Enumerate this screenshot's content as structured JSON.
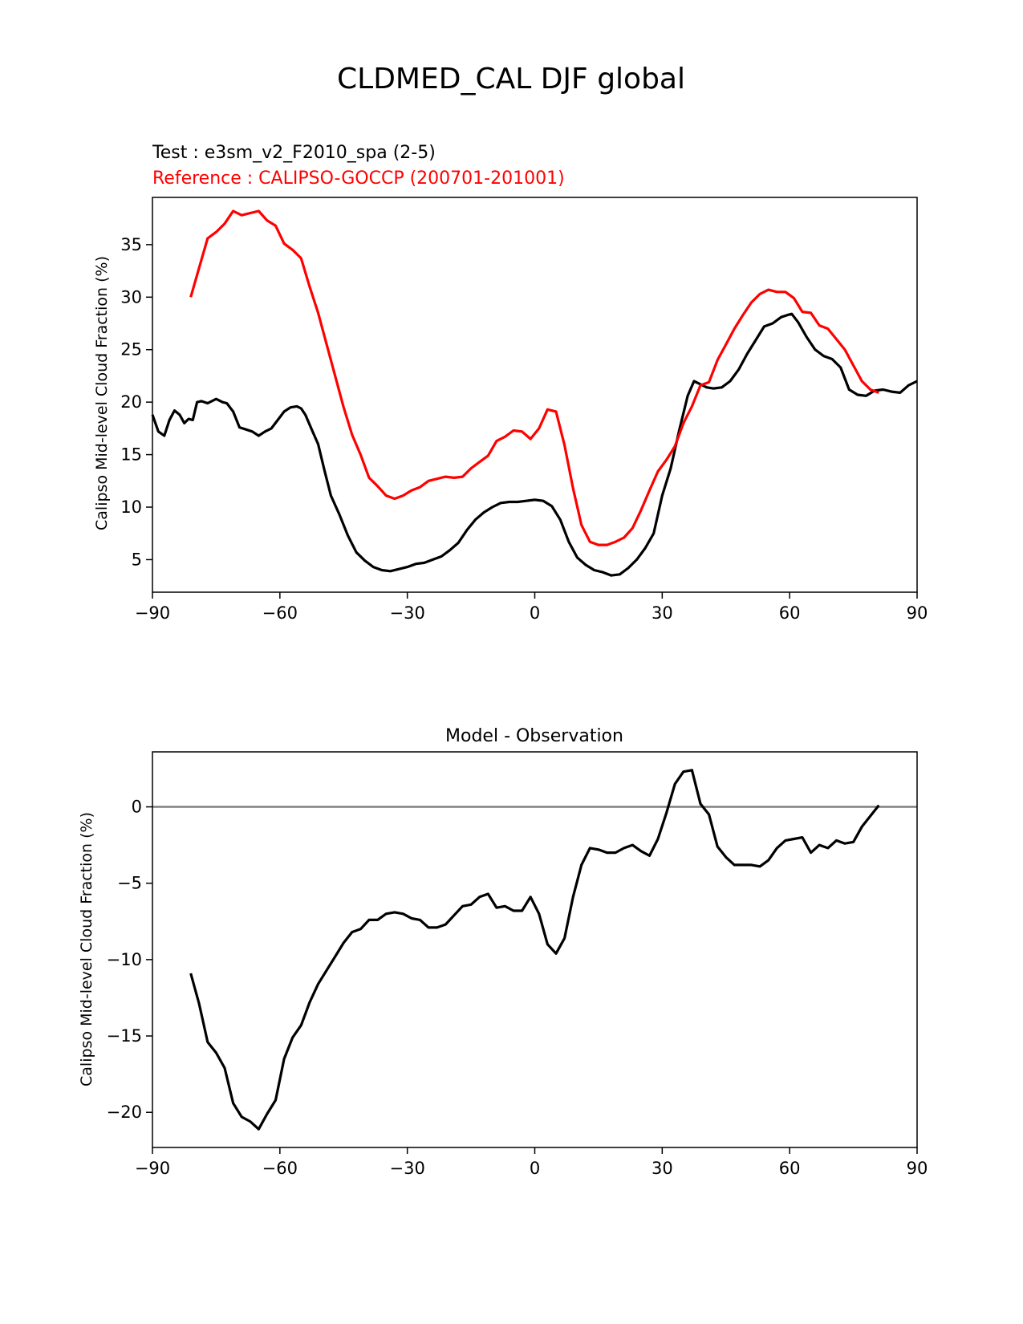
{
  "figure_title": "CLDMED_CAL DJF global",
  "colors": {
    "test": "#000000",
    "reference": "#ff0000",
    "zero_line": "#808080",
    "axes": "#000000"
  },
  "chart_data": [
    {
      "type": "line",
      "title_test": "Test : e3sm_v2_F2010_spa (2-5)",
      "title_reference": "Reference : CALIPSO-GOCCP (200701-201001)",
      "xlabel": "",
      "ylabel": "Calipso Mid-level Cloud Fraction (%)",
      "xlim": [
        -90,
        90
      ],
      "ylim": [
        1.9,
        39.5
      ],
      "xticks": [
        -90,
        -60,
        -30,
        0,
        30,
        60,
        90
      ],
      "xtick_labels": [
        "−90",
        "−60",
        "−30",
        "0",
        "30",
        "60",
        "90"
      ],
      "yticks": [
        5,
        10,
        15,
        20,
        25,
        30,
        35
      ],
      "ytick_labels": [
        "5",
        "10",
        "15",
        "20",
        "25",
        "30",
        "35"
      ],
      "series": [
        {
          "name": "Test : e3sm_v2_F2010_spa (2-5)",
          "color": "#000000",
          "x": [
            -90,
            -88.6,
            -87.2,
            -86,
            -84.8,
            -83.6,
            -82.5,
            -81.5,
            -80.5,
            -79.5,
            -78.5,
            -77,
            -75,
            -73.5,
            -72.5,
            -71,
            -69.5,
            -68,
            -66.5,
            -65,
            -63.5,
            -62,
            -60.5,
            -59,
            -57.5,
            -56,
            -55,
            -54,
            -52.5,
            -51,
            -49.5,
            -48,
            -46,
            -44,
            -42,
            -40,
            -38,
            -36,
            -34,
            -32,
            -30,
            -28,
            -26,
            -24,
            -22,
            -20,
            -18,
            -16,
            -14,
            -12,
            -10,
            -8,
            -6,
            -4,
            -2,
            0,
            2,
            4,
            6,
            8,
            10,
            12,
            14,
            16,
            18,
            20,
            22,
            24,
            26,
            28,
            30,
            32,
            34,
            36,
            37.5,
            39,
            40.5,
            42,
            44,
            46,
            48,
            50,
            52,
            54,
            56,
            58,
            59.5,
            60.5,
            62,
            64,
            66,
            68,
            70,
            72,
            74,
            76,
            78,
            80,
            82,
            84,
            86,
            88,
            90
          ],
          "y": [
            18.8,
            17.2,
            16.8,
            18.3,
            19.2,
            18.8,
            18.0,
            18.4,
            18.3,
            20.0,
            20.1,
            19.9,
            20.3,
            20.0,
            19.9,
            19.1,
            17.6,
            17.4,
            17.2,
            16.8,
            17.2,
            17.5,
            18.3,
            19.1,
            19.5,
            19.6,
            19.4,
            18.8,
            17.4,
            16.0,
            13.5,
            11.1,
            9.3,
            7.3,
            5.7,
            4.9,
            4.3,
            4.0,
            3.9,
            4.1,
            4.3,
            4.6,
            4.7,
            5.0,
            5.3,
            5.9,
            6.6,
            7.8,
            8.8,
            9.5,
            10.0,
            10.4,
            10.5,
            10.5,
            10.6,
            10.7,
            10.6,
            10.1,
            8.8,
            6.7,
            5.2,
            4.5,
            4.0,
            3.8,
            3.5,
            3.6,
            4.2,
            5.0,
            6.1,
            7.5,
            11.1,
            13.7,
            17.3,
            20.6,
            22.0,
            21.7,
            21.4,
            21.3,
            21.4,
            22.0,
            23.1,
            24.6,
            25.9,
            27.2,
            27.5,
            28.1,
            28.3,
            28.4,
            27.6,
            26.2,
            25.0,
            24.4,
            24.1,
            23.3,
            21.2,
            20.7,
            20.6,
            21.1,
            21.2,
            21.0,
            20.9,
            21.6,
            22.0
          ]
        },
        {
          "name": "Reference : CALIPSO-GOCCP (200701-201001)",
          "color": "#ff0000",
          "x": [
            -81,
            -79,
            -77,
            -75,
            -73,
            -71,
            -69,
            -67,
            -65,
            -63,
            -61,
            -59,
            -57,
            -55,
            -53,
            -51,
            -49,
            -47,
            -45,
            -43,
            -41,
            -39,
            -37,
            -35,
            -33,
            -31,
            -29,
            -27,
            -25,
            -23,
            -21,
            -19,
            -17,
            -15,
            -13,
            -11,
            -9,
            -7,
            -5,
            -3,
            -1,
            1,
            3,
            5,
            7,
            9,
            11,
            13,
            15,
            17,
            19,
            21,
            23,
            25,
            27,
            29,
            31,
            33,
            35,
            37,
            39,
            41,
            43,
            45,
            47,
            49,
            51,
            53,
            55,
            57,
            59,
            61,
            63,
            65,
            67,
            69,
            71,
            73,
            75,
            77,
            79,
            81
          ],
          "y": [
            30.0,
            32.8,
            35.6,
            36.2,
            37.0,
            38.2,
            37.8,
            38.0,
            38.2,
            37.3,
            36.8,
            35.1,
            34.5,
            33.7,
            31.0,
            28.5,
            25.5,
            22.5,
            19.5,
            16.9,
            15.0,
            12.8,
            12.0,
            11.1,
            10.8,
            11.1,
            11.6,
            11.9,
            12.5,
            12.7,
            12.9,
            12.8,
            12.9,
            13.7,
            14.3,
            14.9,
            16.3,
            16.7,
            17.3,
            17.2,
            16.5,
            17.5,
            19.3,
            19.1,
            15.9,
            11.8,
            8.3,
            6.7,
            6.4,
            6.4,
            6.7,
            7.1,
            8.0,
            9.7,
            11.6,
            13.4,
            14.5,
            15.8,
            18.0,
            19.6,
            21.6,
            21.9,
            24.0,
            25.5,
            27.0,
            28.3,
            29.5,
            30.3,
            30.7,
            30.5,
            30.5,
            29.9,
            28.6,
            28.5,
            27.3,
            27.0,
            26.0,
            25.0,
            23.5,
            22.0,
            21.2,
            20.9
          ]
        }
      ]
    },
    {
      "type": "line",
      "title": "Model - Observation",
      "xlabel": "",
      "ylabel": "Calipso Mid-level Cloud Fraction (%)",
      "xlim": [
        -90,
        90
      ],
      "ylim": [
        -22.3,
        3.6
      ],
      "xticks": [
        -90,
        -60,
        -30,
        0,
        30,
        60,
        90
      ],
      "xtick_labels": [
        "−90",
        "−60",
        "−30",
        "0",
        "30",
        "60",
        "90"
      ],
      "yticks": [
        -20,
        -15,
        -10,
        -5,
        0
      ],
      "ytick_labels": [
        "−20",
        "−15",
        "−10",
        "−5",
        "0"
      ],
      "zero_line": 0,
      "series": [
        {
          "name": "Model - Observation",
          "color": "#000000",
          "x": [
            -81,
            -79,
            -77,
            -75,
            -73,
            -71,
            -69,
            -67,
            -65,
            -63,
            -61,
            -59,
            -57,
            -55,
            -53,
            -51,
            -49,
            -47,
            -45,
            -43,
            -41,
            -39,
            -37,
            -35,
            -33,
            -31,
            -29,
            -27,
            -25,
            -23,
            -21,
            -19,
            -17,
            -15,
            -13,
            -11,
            -9,
            -7,
            -5,
            -3,
            -1,
            1,
            3,
            5,
            7,
            9,
            11,
            13,
            15,
            17,
            19,
            21,
            23,
            25,
            27,
            29,
            31,
            33,
            35,
            37,
            39,
            41,
            43,
            45,
            47,
            49,
            51,
            53,
            55,
            57,
            59,
            61,
            63,
            65,
            67,
            69,
            71,
            73,
            75,
            77,
            79,
            81
          ],
          "y": [
            -10.9,
            -12.9,
            -15.4,
            -16.1,
            -17.1,
            -19.4,
            -20.3,
            -20.6,
            -21.1,
            -20.1,
            -19.2,
            -16.5,
            -15.1,
            -14.3,
            -12.8,
            -11.6,
            -10.7,
            -9.8,
            -8.9,
            -8.2,
            -8.0,
            -7.4,
            -7.4,
            -7.0,
            -6.9,
            -7.0,
            -7.3,
            -7.4,
            -7.9,
            -7.9,
            -7.7,
            -7.1,
            -6.5,
            -6.4,
            -5.9,
            -5.7,
            -6.6,
            -6.5,
            -6.8,
            -6.8,
            -5.9,
            -7.0,
            -9.0,
            -9.6,
            -8.6,
            -5.9,
            -3.8,
            -2.7,
            -2.8,
            -3.0,
            -3.0,
            -2.7,
            -2.5,
            -2.9,
            -3.2,
            -2.1,
            -0.4,
            1.5,
            2.3,
            2.4,
            0.2,
            -0.5,
            -2.6,
            -3.3,
            -3.8,
            -3.8,
            -3.8,
            -3.9,
            -3.5,
            -2.7,
            -2.2,
            -2.1,
            -2.0,
            -3.0,
            -2.5,
            -2.7,
            -2.2,
            -2.4,
            -2.3,
            -1.3,
            -0.6,
            0.1
          ]
        }
      ]
    }
  ]
}
